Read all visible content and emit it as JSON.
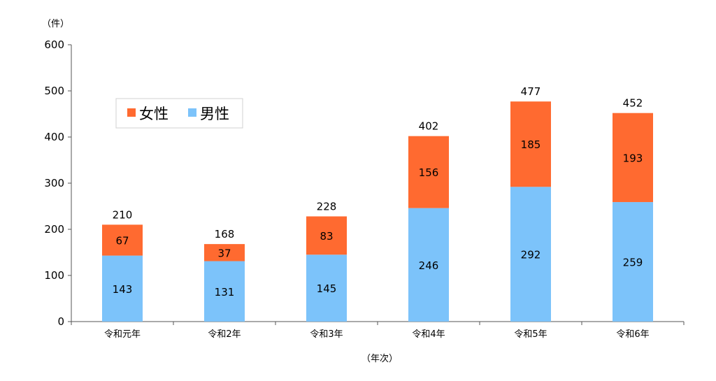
{
  "chart_data": {
    "type": "bar",
    "stacked": true,
    "categories": [
      "令和元年",
      "令和2年",
      "令和3年",
      "令和4年",
      "令和5年",
      "令和6年"
    ],
    "series": [
      {
        "name": "男性",
        "color": "#7cc3fa",
        "values": [
          143,
          131,
          145,
          246,
          292,
          259
        ]
      },
      {
        "name": "女性",
        "color": "#ff6a30",
        "values": [
          67,
          37,
          83,
          156,
          185,
          193
        ]
      }
    ],
    "totals": [
      210,
      168,
      228,
      402,
      477,
      452
    ],
    "legend_order": [
      "女性",
      "男性"
    ],
    "legend_position": "top-left",
    "ylabel": "（件）",
    "xlabel": "（年次）",
    "ylim": [
      0,
      600
    ],
    "yticks": [
      0,
      100,
      200,
      300,
      400,
      500,
      600
    ],
    "grid": false
  }
}
